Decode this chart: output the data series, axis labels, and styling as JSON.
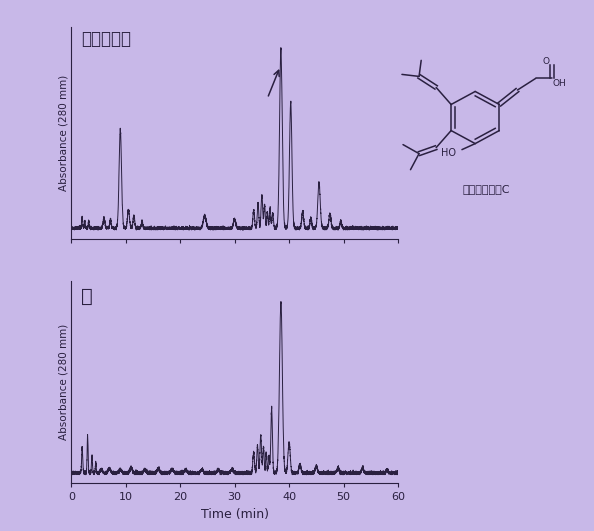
{
  "background_color": "#c8b8e8",
  "line_color": "#2a2040",
  "axis_color": "#2a2040",
  "text_color": "#2a2040",
  "fig_width": 5.94,
  "fig_height": 5.31,
  "xlabel": "Time (min)",
  "ylabel": "Absorbance (280 mm)",
  "xlim": [
    0,
    60
  ],
  "xticks": [
    0,
    10,
    20,
    30,
    40,
    50,
    60
  ],
  "label_top": "プロポリス",
  "label_bottom": "糞",
  "label_artepillin": "アルテピリンC"
}
